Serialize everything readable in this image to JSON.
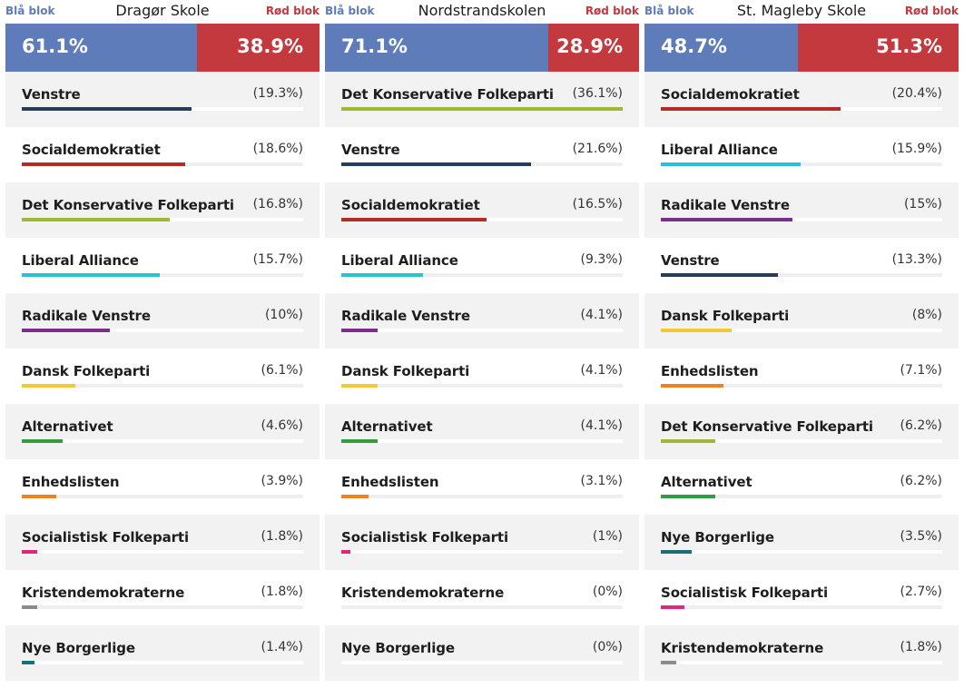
{
  "labels": {
    "blue": "Blå blok",
    "red": "Rød blok"
  },
  "colors": {
    "blue_block": "#5e7cba",
    "red_block": "#c4393d",
    "Venstre": "#253c5e",
    "Socialdemokratiet": "#b32a26",
    "Det Konservative Folkeparti": "#9fb833",
    "Liberal Alliance": "#28c1d6",
    "Radikale Venstre": "#7b2f8a",
    "Dansk Folkeparti": "#f2c933",
    "Alternativet": "#2e9e3e",
    "Enhedslisten": "#f08121",
    "Socialistisk Folkeparti": "#e3257d",
    "Kristendemokraterne": "#8c8c8c",
    "Nye Borgerlige": "#1a6f77"
  },
  "chart_data": [
    {
      "type": "bar",
      "title": "Dragør Skole",
      "blocs": {
        "blue": 61.1,
        "red": 38.9,
        "blue_label": "61.1%",
        "red_label": "38.9%"
      },
      "scale_max": 32,
      "parties": [
        {
          "name": "Venstre",
          "value": 19.3,
          "label": "(19.3%)"
        },
        {
          "name": "Socialdemokratiet",
          "value": 18.6,
          "label": "(18.6%)"
        },
        {
          "name": "Det Konservative Folkeparti",
          "value": 16.8,
          "label": "(16.8%)"
        },
        {
          "name": "Liberal Alliance",
          "value": 15.7,
          "label": "(15.7%)"
        },
        {
          "name": "Radikale Venstre",
          "value": 10,
          "label": "(10%)"
        },
        {
          "name": "Dansk Folkeparti",
          "value": 6.1,
          "label": "(6.1%)"
        },
        {
          "name": "Alternativet",
          "value": 4.6,
          "label": "(4.6%)"
        },
        {
          "name": "Enhedslisten",
          "value": 3.9,
          "label": "(3.9%)"
        },
        {
          "name": "Socialistisk Folkeparti",
          "value": 1.8,
          "label": "(1.8%)"
        },
        {
          "name": "Kristendemokraterne",
          "value": 1.8,
          "label": "(1.8%)"
        },
        {
          "name": "Nye Borgerlige",
          "value": 1.4,
          "label": "(1.4%)"
        }
      ]
    },
    {
      "type": "bar",
      "title": "Nordstrandskolen",
      "blocs": {
        "blue": 71.1,
        "red": 28.9,
        "blue_label": "71.1%",
        "red_label": "28.9%"
      },
      "scale_max": 32,
      "parties": [
        {
          "name": "Det Konservative Folkeparti",
          "value": 36.1,
          "label": "(36.1%)"
        },
        {
          "name": "Venstre",
          "value": 21.6,
          "label": "(21.6%)"
        },
        {
          "name": "Socialdemokratiet",
          "value": 16.5,
          "label": "(16.5%)"
        },
        {
          "name": "Liberal Alliance",
          "value": 9.3,
          "label": "(9.3%)"
        },
        {
          "name": "Radikale Venstre",
          "value": 4.1,
          "label": "(4.1%)"
        },
        {
          "name": "Dansk Folkeparti",
          "value": 4.1,
          "label": "(4.1%)"
        },
        {
          "name": "Alternativet",
          "value": 4.1,
          "label": "(4.1%)"
        },
        {
          "name": "Enhedslisten",
          "value": 3.1,
          "label": "(3.1%)"
        },
        {
          "name": "Socialistisk Folkeparti",
          "value": 1,
          "label": "(1%)"
        },
        {
          "name": "Kristendemokraterne",
          "value": 0,
          "label": "(0%)"
        },
        {
          "name": "Nye Borgerlige",
          "value": 0,
          "label": "(0%)"
        }
      ]
    },
    {
      "type": "bar",
      "title": "St. Magleby Skole",
      "blocs": {
        "blue": 48.7,
        "red": 51.3,
        "blue_label": "48.7%",
        "red_label": "51.3%"
      },
      "scale_max": 32,
      "parties": [
        {
          "name": "Socialdemokratiet",
          "value": 20.4,
          "label": "(20.4%)"
        },
        {
          "name": "Liberal Alliance",
          "value": 15.9,
          "label": "(15.9%)"
        },
        {
          "name": "Radikale Venstre",
          "value": 15,
          "label": "(15%)"
        },
        {
          "name": "Venstre",
          "value": 13.3,
          "label": "(13.3%)"
        },
        {
          "name": "Dansk Folkeparti",
          "value": 8,
          "label": "(8%)"
        },
        {
          "name": "Enhedslisten",
          "value": 7.1,
          "label": "(7.1%)"
        },
        {
          "name": "Det Konservative Folkeparti",
          "value": 6.2,
          "label": "(6.2%)"
        },
        {
          "name": "Alternativet",
          "value": 6.2,
          "label": "(6.2%)"
        },
        {
          "name": "Nye Borgerlige",
          "value": 3.5,
          "label": "(3.5%)"
        },
        {
          "name": "Socialistisk Folkeparti",
          "value": 2.7,
          "label": "(2.7%)"
        },
        {
          "name": "Kristendemokraterne",
          "value": 1.8,
          "label": "(1.8%)"
        }
      ]
    }
  ]
}
